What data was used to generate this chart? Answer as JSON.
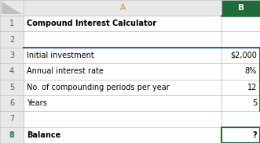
{
  "col_header_A": "A",
  "col_header_B": "B",
  "col_A_data": [
    "Compound Interest Calculator",
    "",
    "Initial investment",
    "Annual interest rate",
    "No. of compounding periods per year",
    "Years",
    "",
    "Balance"
  ],
  "col_B_data": [
    "",
    "",
    "$2,000",
    "8%",
    "12",
    "5",
    "",
    "?"
  ],
  "bold_rows_A": [
    0,
    7
  ],
  "bold_rows_B": [
    7
  ],
  "row8_num_color": "#1F7A4D",
  "col_b_header_bg": "#1F6B3A",
  "col_b_header_text_color": "#ffffff",
  "header_bg": "#E8E8E8",
  "grid_color": "#BFBFBF",
  "cell_bg": "#FFFFFF",
  "row_num_color": "#595959",
  "balance_cell_border_color": "#1F6B3A",
  "blue_line_color": "#2E5FA3",
  "figsize": [
    3.31,
    1.83
  ],
  "dpi": 100
}
